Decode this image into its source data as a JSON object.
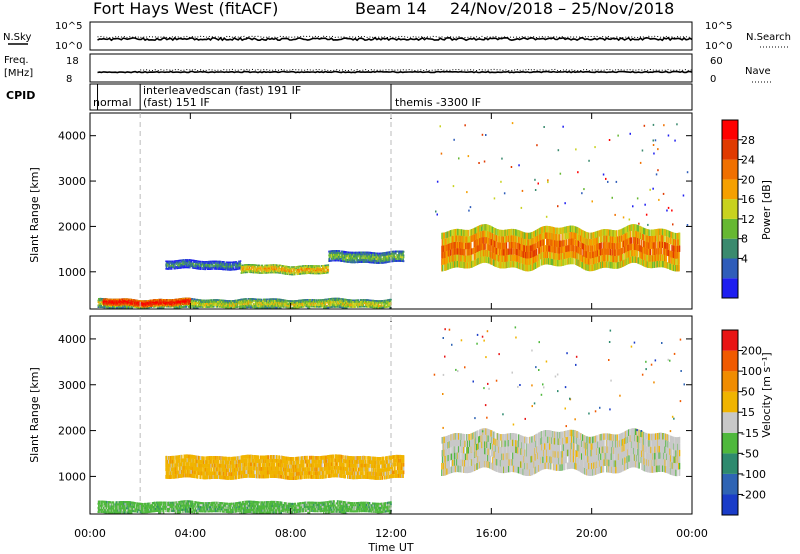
{
  "header": {
    "radar": "Fort Hays West (fitACF)",
    "beam": "Beam 14",
    "dates": "24/Nov/2018 – 25/Nov/2018"
  },
  "top_panels": {
    "nsky_label": "N.Sky",
    "nsearch_label": "N.Search",
    "nsky_ticks": [
      "10^5",
      "10^0"
    ],
    "nsearch_ticks": [
      "10^5",
      "10^0"
    ],
    "freq_label": "Freq.",
    "freq_unit": "[MHz]",
    "freq_ticks": [
      "18",
      "8"
    ],
    "nave_label": "Nave",
    "nave_ticks": [
      "60",
      "0"
    ],
    "cpid_label": "CPID",
    "cpid_segments": [
      "normal",
      "interleavedscan (fast) 191 IF",
      "(fast) 151 IF",
      "themis -3300 IF"
    ]
  },
  "power_panel": {
    "ylabel": "Slant Range [km]",
    "yticks": [
      "4000",
      "3000",
      "2000",
      "1000"
    ],
    "colorbar_label": "Power [dB]",
    "colorbar_ticks": [
      "28",
      "24",
      "20",
      "16",
      "12",
      "8",
      "4"
    ],
    "colors": [
      "#1e1ef0",
      "#2f5dba",
      "#3a8a6e",
      "#66b832",
      "#c8d21e",
      "#f5a000",
      "#f07000",
      "#e03a00",
      "#ff0000"
    ]
  },
  "velocity_panel": {
    "ylabel": "Slant Range [km]",
    "yticks": [
      "4000",
      "3000",
      "2000",
      "1000"
    ],
    "colorbar_label": "Velocity [m s⁻¹]",
    "colorbar_ticks": [
      "200",
      "100",
      "50",
      "15",
      "-15",
      "-50",
      "-100",
      "-200"
    ],
    "colors": [
      "#1a3cc8",
      "#2f64b4",
      "#2e8a6e",
      "#4fb83c",
      "#c8c8c8",
      "#f0b400",
      "#f08c00",
      "#f05a00",
      "#e81414"
    ]
  },
  "x_axis": {
    "ticks": [
      "00:00",
      "04:00",
      "08:00",
      "12:00",
      "16:00",
      "20:00",
      "00:00"
    ],
    "label": "Time UT"
  },
  "chart_data": {
    "type": "heatmap",
    "x_range_hours": [
      0,
      24
    ],
    "y_range_km": [
      180,
      4500
    ],
    "cpid_changes_hours": [
      0.3,
      2.0,
      12.0
    ],
    "power_bands": [
      {
        "t_start": 0.3,
        "t_end": 12.0,
        "r_start": 180,
        "r_end": 400,
        "level": 3
      },
      {
        "t_start": 0.5,
        "t_end": 4.0,
        "r_start": 250,
        "r_end": 400,
        "level": 7
      },
      {
        "t_start": 3.0,
        "t_end": 6.0,
        "r_start": 1050,
        "r_end": 1250,
        "level": 1
      },
      {
        "t_start": 6.0,
        "t_end": 9.5,
        "r_start": 950,
        "r_end": 1150,
        "level": 4
      },
      {
        "t_start": 9.5,
        "t_end": 12.5,
        "r_start": 1200,
        "r_end": 1450,
        "level": 2
      },
      {
        "t_start": 14.0,
        "t_end": 23.5,
        "r_start": 1100,
        "r_end": 1950,
        "level": 5
      }
    ],
    "velocity_bands": [
      {
        "t_start": 0.3,
        "t_end": 12.0,
        "r_start": 180,
        "r_end": 450,
        "level": 3
      },
      {
        "t_start": 3.0,
        "t_end": 12.5,
        "r_start": 950,
        "r_end": 1450,
        "level": 5
      },
      {
        "t_start": 14.0,
        "t_end": 23.5,
        "r_start": 1100,
        "r_end": 1950,
        "level": 4
      }
    ]
  }
}
